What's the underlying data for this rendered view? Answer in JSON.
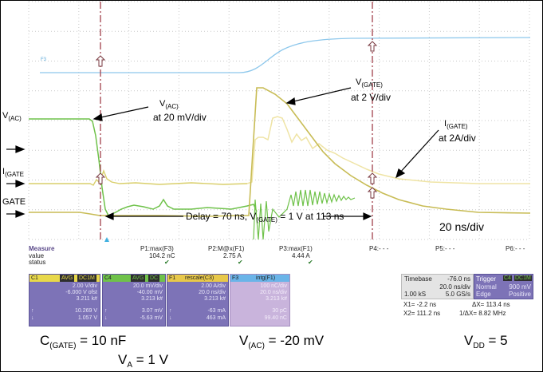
{
  "annotations": {
    "vac_label_main": "V",
    "vac_label_sub": "(AC)",
    "igate_label_main": "I",
    "igate_label_sub": "(GATE",
    "gate_label": "GATE",
    "callout_vac_main": "V",
    "callout_vac_sub": "(AC)",
    "callout_vac_scale": "at 20 mV/div",
    "callout_vgate_main": "V",
    "callout_vgate_sub": "(GATE)",
    "callout_vgate_scale": "at 2 V/div",
    "callout_igate_main": "I",
    "callout_igate_sub": "(GATE)",
    "callout_igate_scale": "at 2A/div",
    "delay_prefix": "Delay = 70 ns,  V",
    "delay_sub": "(GATE)",
    "delay_suffix": " = 1 V at  113 ns",
    "timebase_text": "20 ns/div",
    "trace_f3": "F3"
  },
  "measure": {
    "title": "Measure",
    "value_label": "value",
    "status_label": "status",
    "params": [
      {
        "name": "P1:max(F3)",
        "value": "104.2 nC",
        "status": "✔"
      },
      {
        "name": "P2:M@x(F1)",
        "value": "2.75 A",
        "status": "✔"
      },
      {
        "name": "P3:max(F1)",
        "value": "4.44 A",
        "status": "✔"
      },
      {
        "name": "P4:- - -",
        "value": "",
        "status": ""
      },
      {
        "name": "P5:- - -",
        "value": "",
        "status": ""
      },
      {
        "name": "P6:- - -",
        "value": "",
        "status": ""
      }
    ]
  },
  "channels": [
    {
      "id": "C1",
      "badges": [
        "AVG",
        "DC1M"
      ],
      "header_color": "#e8d84a",
      "lines": [
        "2.00 V/div",
        "-6.000 V ofst",
        "3.211 k#"
      ],
      "stat1_label": "↑",
      "stat1": "10.269 V",
      "stat2_label": "↓",
      "stat2": "1.057 V"
    },
    {
      "id": "C4",
      "badges": [
        "AVG",
        "DC"
      ],
      "header_color": "#6fc24a",
      "lines": [
        "20.0 mV/div",
        "-40.00 mV",
        "3.213 k#"
      ],
      "stat1_label": "↑",
      "stat1": "3.07 mV",
      "stat2_label": "↓",
      "stat2": "-5.63 mV"
    },
    {
      "id": "F1",
      "badges": [
        "rescale(C3)"
      ],
      "header_color": "#e8c84a",
      "lines": [
        "2.00 A/div",
        "20.0 ns/div",
        "3.213 k#"
      ],
      "stat1_label": "↑",
      "stat1": "-63 mA",
      "stat2_label": "↓",
      "stat2": "463 mA"
    },
    {
      "id": "F3",
      "badges": [
        "intg(F1)"
      ],
      "header_color": "#6ab4e8",
      "lines": [
        "100 nC/div",
        "20.0 ns/div",
        "3.213 k#"
      ],
      "stat1_label": "",
      "stat1": "30 pC",
      "stat2_label": "",
      "stat2": "99.40 nC"
    }
  ],
  "timebase": {
    "label": "Timebase",
    "offset": "-76.0 ns",
    "per_div": "20.0 ns/div",
    "samples": "1.00 kS",
    "rate": "5.0 GS/s",
    "trigger_label": "Trigger",
    "trigger_badges": [
      "C4",
      "DC1M"
    ],
    "trigger_mode": "Normal",
    "trigger_level": "900 mV",
    "trigger_type": "Edge",
    "trigger_slope": "Positive",
    "x1": "X1=   -2.2 ns",
    "dx": "ΔX=   113.4 ns",
    "x2": "X2=  111.2 ns",
    "invdx": "1/ΔX=  8.82 MHz"
  },
  "footer": {
    "cgate_main": "C",
    "cgate_sub": "(GATE)",
    "cgate_val": " = 10 nF",
    "vac_main": "V",
    "vac_sub": "(AC)",
    "vac_val": " = -20 mV",
    "vdd_main": "V",
    "vdd_sub": "DD",
    "vdd_val": " = 5",
    "va_main": "V",
    "va_sub": "A",
    "va_val": " = 1 V"
  },
  "colors": {
    "trace_green": "#6fc24a",
    "trace_yellow": "#d9cf6b",
    "trace_yellow_light": "#efe4a5",
    "trace_blue": "#8ec8ec",
    "cursor": "#a2404a",
    "grid": "#c9c9c9"
  }
}
